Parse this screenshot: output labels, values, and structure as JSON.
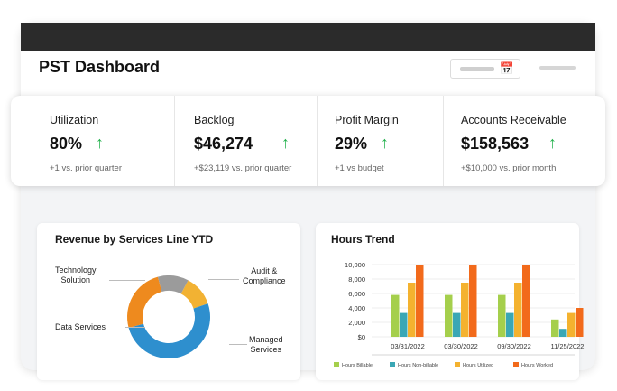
{
  "header": {
    "title": "PST Dashboard",
    "date_icon": "calendar-icon"
  },
  "kpis": [
    {
      "label": "Utilization",
      "value": "80%",
      "sub": "+1 vs. prior quarter",
      "trend": "up"
    },
    {
      "label": "Backlog",
      "value": "$46,274",
      "sub": "+$23,119 vs. prior quarter",
      "trend": "up"
    },
    {
      "label": "Profit Margin",
      "value": "29%",
      "sub": "+1 vs budget",
      "trend": "up"
    },
    {
      "label": "Accounts Receivable",
      "value": "$158,563",
      "sub": "+$10,000 vs. prior month",
      "trend": "up"
    }
  ],
  "arrow_glyph": "↑",
  "colors": {
    "kpi_up": "#22b14c",
    "topbar": "#2b2b2b"
  },
  "revenue": {
    "title": "Revenue by Services Line YTD",
    "labels": {
      "technology": "Technology\nSolution",
      "audit": "Audit &\nCompliance",
      "data": "Data Services",
      "managed": "Managed\nServices"
    }
  },
  "hours": {
    "title": "Hours Trend",
    "y_ticks": [
      "10,000",
      "8,000",
      "6,000",
      "4,000",
      "2,000",
      "$0"
    ]
  },
  "chart_data": [
    {
      "type": "pie",
      "title": "Revenue by Services Line YTD",
      "donut": true,
      "slices": [
        {
          "label": "Audit & Compliance",
          "value": 12,
          "color": "#f2b233"
        },
        {
          "label": "Managed Services",
          "value": 51,
          "color": "#2e8fce"
        },
        {
          "label": "Data Services",
          "value": 25,
          "color": "#ee8a1e"
        },
        {
          "label": "Technology Solution",
          "value": 12,
          "color": "#9b9b9b"
        }
      ]
    },
    {
      "type": "bar",
      "title": "Hours Trend",
      "categories": [
        "03/31/2022",
        "03/30/2022",
        "09/30/2022",
        "11/25/2022"
      ],
      "ylim": [
        0,
        10000
      ],
      "series": [
        {
          "name": "Hours Billable",
          "color": "#a5cf4c",
          "values": [
            5800,
            5800,
            5800,
            2400
          ]
        },
        {
          "name": "Hours Non-billable",
          "color": "#3aa7b5",
          "values": [
            3300,
            3300,
            3300,
            1100
          ]
        },
        {
          "name": "Hours Utilized",
          "color": "#f4b22f",
          "values": [
            7500,
            7500,
            7500,
            3300
          ]
        },
        {
          "name": "Hours Worked",
          "color": "#f26a1b",
          "values": [
            10000,
            10000,
            10000,
            4000
          ]
        }
      ]
    }
  ]
}
